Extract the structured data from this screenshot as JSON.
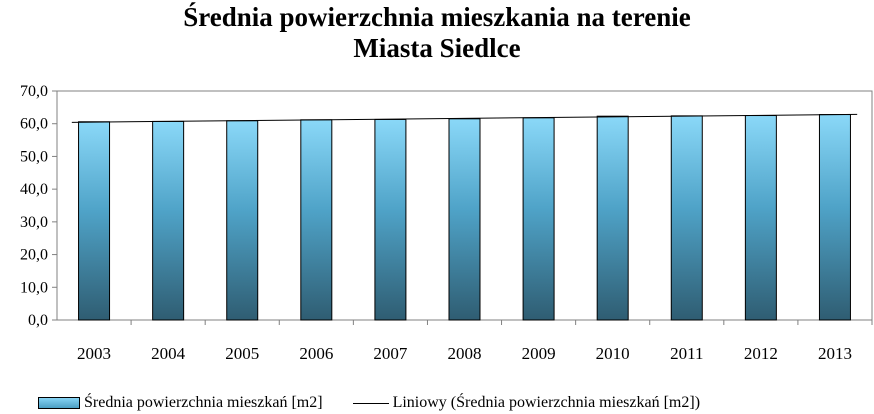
{
  "chart_data": {
    "type": "bar",
    "title_lines": [
      "Średnia powierzchnia mieszkania na terenie",
      "Miasta Siedlce"
    ],
    "categories": [
      "2003",
      "2004",
      "2005",
      "2006",
      "2007",
      "2008",
      "2009",
      "2010",
      "2011",
      "2012",
      "2013"
    ],
    "series": [
      {
        "name": "Średnia powierzchnia mieszkań  [m2]",
        "values": [
          60.6,
          60.7,
          60.9,
          61.2,
          61.3,
          61.5,
          61.8,
          62.3,
          62.4,
          62.5,
          62.8
        ]
      }
    ],
    "trendline": {
      "name": "Liniowy (Średnia powierzchnia mieszkań  [m2])",
      "type": "linear"
    },
    "ylim": [
      0,
      70
    ],
    "yticks": [
      "0,0",
      "10,0",
      "20,0",
      "30,0",
      "40,0",
      "50,0",
      "60,0",
      "70,0"
    ],
    "grid": false,
    "legend_position": "bottom",
    "colors": {
      "bar_top": "#8ad8f8",
      "bar_bottom": "#2f5d72",
      "trend": "#000000"
    }
  }
}
